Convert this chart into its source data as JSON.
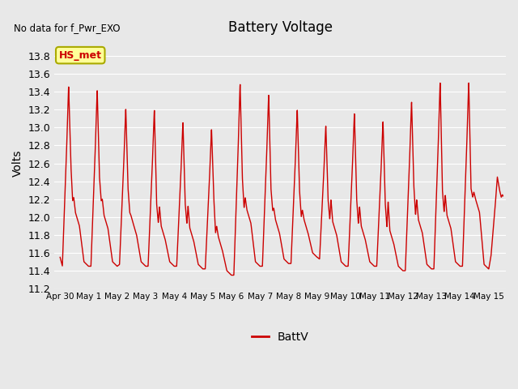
{
  "title": "Battery Voltage",
  "top_left_text": "No data for f_Pwr_EXO",
  "legend_label": "BattV",
  "ylabel": "Volts",
  "ylim": [
    11.2,
    14.0
  ],
  "yticks": [
    11.2,
    11.4,
    11.6,
    11.8,
    12.0,
    12.2,
    12.4,
    12.6,
    12.8,
    13.0,
    13.2,
    13.4,
    13.6,
    13.8
  ],
  "xtick_labels": [
    "Apr 30",
    "May 1",
    "May 2",
    "May 3",
    "May 4",
    "May 5",
    "May 6",
    "May 7",
    "May 8",
    "May 9",
    "May 10",
    "May 11",
    "May 12",
    "May 13",
    "May 14",
    "May 15"
  ],
  "line_color": "#cc0000",
  "line_width": 1.0,
  "axes_bg_color": "#e8e8e8",
  "grid_color": "#ffffff",
  "legend_box_color": "#ffff99",
  "legend_box_edge": "#aaaa00",
  "annotation_text": "HS_met",
  "annotation_color": "#cc0000",
  "fig_facecolor": "#e8e8e8"
}
